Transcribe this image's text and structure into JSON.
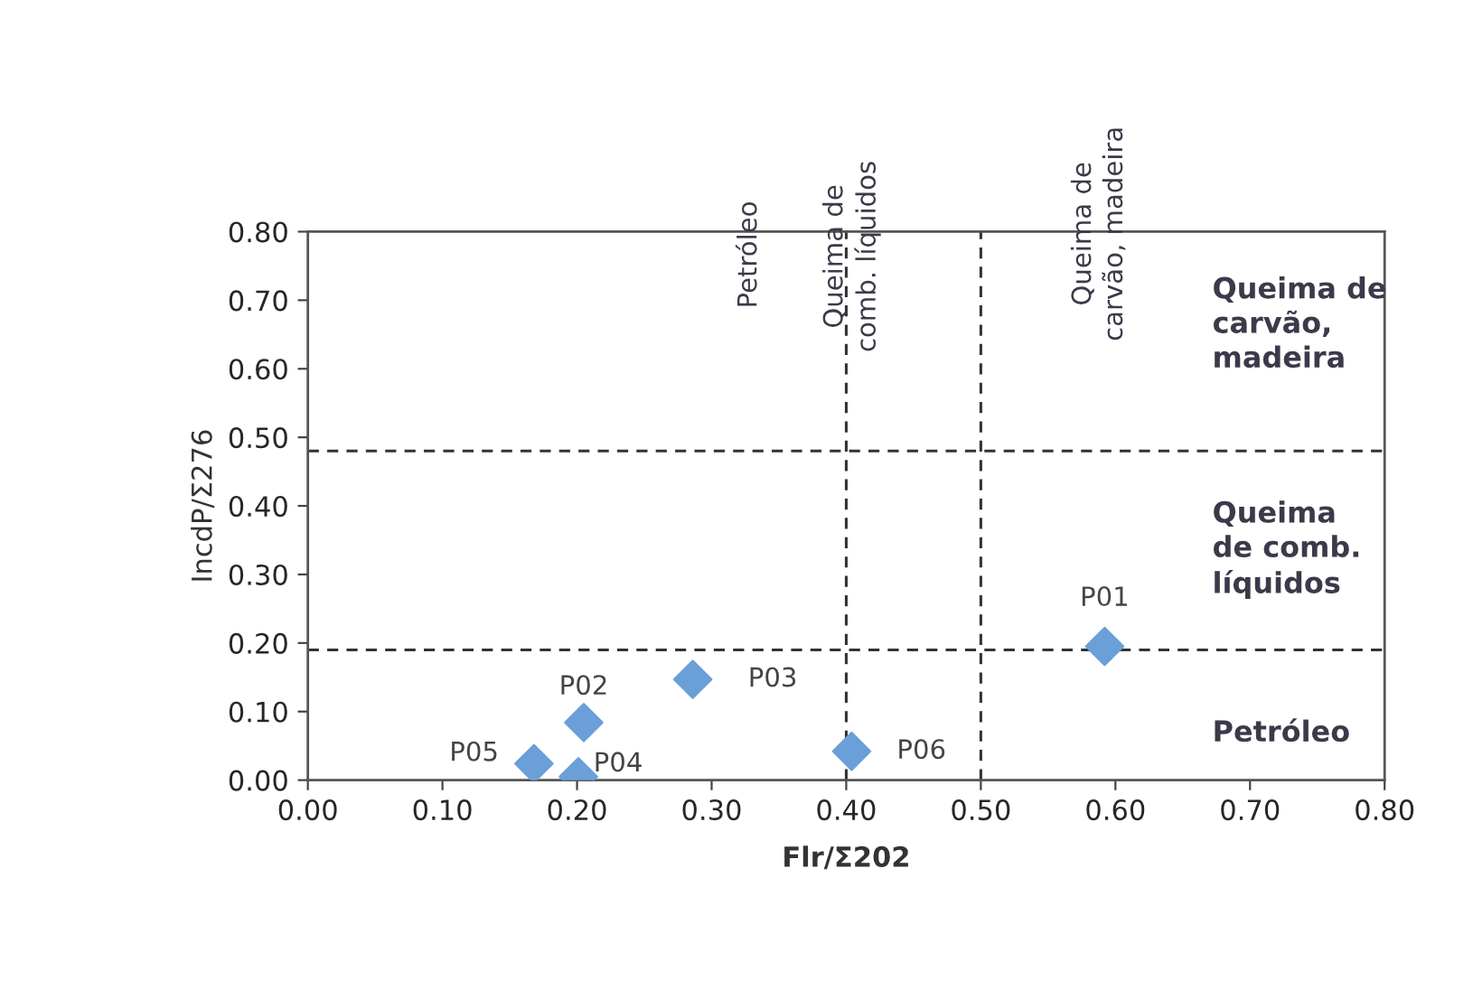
{
  "chart_data": {
    "type": "scatter",
    "xlabel": "Flr/Σ202",
    "ylabel": "IncdP/Σ276",
    "series": [
      {
        "color": "#6a9fd8",
        "x": [
          0.592,
          0.205,
          0.286,
          0.201,
          0.168,
          0.404
        ],
        "values": [
          0.195,
          0.084,
          0.147,
          0.005,
          0.024,
          0.042
        ]
      }
    ],
    "marker": "diamond",
    "grid": false,
    "legend": false,
    "xlim": [
      0,
      0.8
    ],
    "xticks": [
      {
        "value": 0,
        "label": "0.00"
      },
      {
        "value": 0.1,
        "label": "0.10"
      },
      {
        "value": 0.2,
        "label": "0.20"
      },
      {
        "value": 0.3,
        "label": "0.30"
      },
      {
        "value": 0.4,
        "label": "0.40"
      },
      {
        "value": 0.5,
        "label": "0.50"
      },
      {
        "value": 0.6,
        "label": "0.60"
      },
      {
        "value": 0.7,
        "label": "0.70"
      },
      {
        "value": 0.8,
        "label": "0.80"
      }
    ],
    "ylim": [
      0,
      0.8
    ],
    "yticks": [
      {
        "value": 0,
        "label": "0.00"
      },
      {
        "value": 0.1,
        "label": "0.10"
      },
      {
        "value": 0.2,
        "label": "0.20"
      },
      {
        "value": 0.3,
        "label": "0.30"
      },
      {
        "value": 0.4,
        "label": "0.40"
      },
      {
        "value": 0.5,
        "label": "0.50"
      },
      {
        "value": 0.6,
        "label": "0.60"
      },
      {
        "value": 0.7,
        "label": "0.70"
      },
      {
        "value": 0.8,
        "label": "0.80"
      }
    ],
    "ref_lines": [
      {
        "axis": "y",
        "value": 0.19,
        "color": "#333333",
        "line_style": "dashed"
      },
      {
        "axis": "y",
        "value": 0.48,
        "color": "#333333",
        "line_style": "dashed"
      },
      {
        "axis": "x",
        "value": 0.4,
        "color": "#333333",
        "line_style": "dashed"
      },
      {
        "axis": "x",
        "value": 0.5,
        "color": "#333333",
        "line_style": "dashed"
      }
    ],
    "annotations": [
      {
        "text": "P01",
        "x": 0.592,
        "y": 0.195
      },
      {
        "text": "P02",
        "x": 0.205,
        "y": 0.084
      },
      {
        "text": "P03",
        "x": 0.286,
        "y": 0.147
      },
      {
        "text": "P04",
        "x": 0.201,
        "y": 0.005
      },
      {
        "text": "P05",
        "x": 0.168,
        "y": 0.024
      },
      {
        "text": "P06",
        "x": 0.404,
        "y": 0.042
      },
      "Petróleo",
      "Queima de\ncomb. líquidos",
      "Queima de\ncarvão, madeira",
      "Queima de\ncarvão,\nmadeira",
      "Queima\nde comb.\nlíquidos",
      "Petróleo"
    ]
  }
}
